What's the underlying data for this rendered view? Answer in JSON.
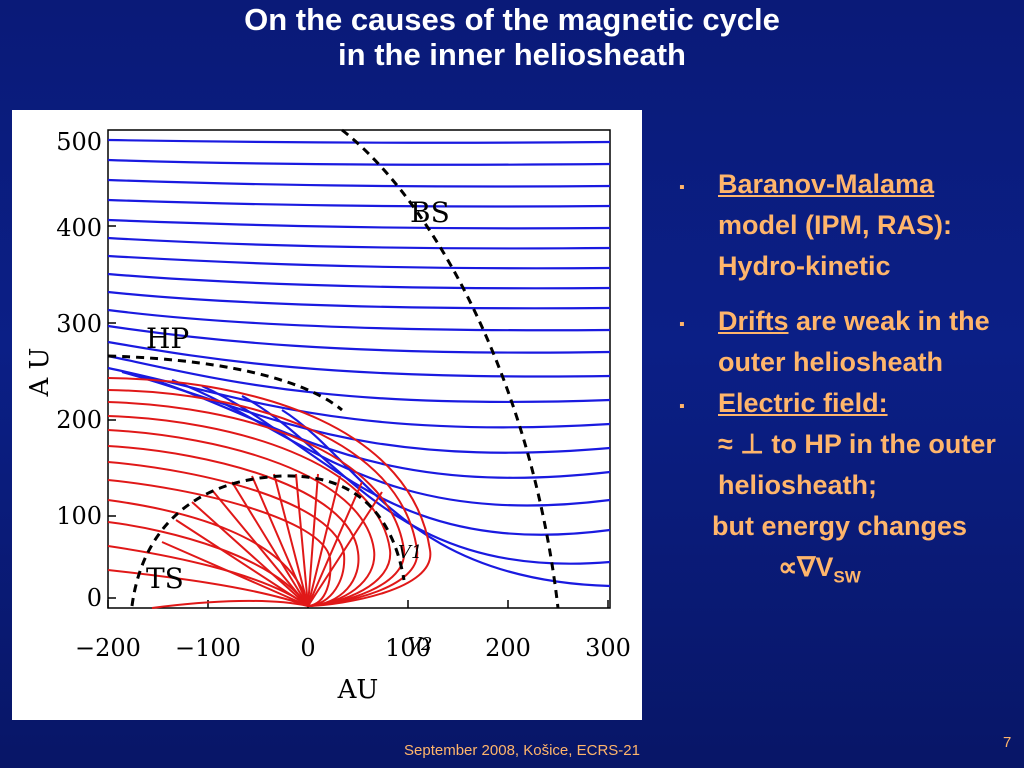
{
  "title": {
    "line1": "On the causes of the magnetic cycle",
    "line2": "in the inner heliosheath"
  },
  "figure": {
    "y_ticks": [
      "500",
      "400",
      "300",
      "200",
      "100",
      "0"
    ],
    "x_ticks": [
      "−200",
      "−100",
      "0",
      "100",
      "200",
      "300"
    ],
    "y_axis_label": "A U",
    "x_axis_label": "AU",
    "region_labels": {
      "bs": "BS",
      "hp": "HP",
      "ts": "TS",
      "v1": "V1",
      "v2": "V2"
    }
  },
  "bullets": [
    {
      "lead": "Baranov-Malama",
      "rest": " model (IPM, RAS): Hydro-kinetic"
    },
    {
      "lead": "Drifts",
      "rest": " are weak in the outer heliosheath"
    },
    {
      "lead": "Electric field:",
      "line2": "≈ ⊥ to HP in the outer heliosheath;",
      "line3": "but energy changes",
      "formula": "∝∇V",
      "formula_sub": "SW"
    }
  ],
  "footer": "September 2008, Košice, ECRS-21",
  "page_number": "7",
  "colors": {
    "background": "#0b1f86",
    "accent": "#ffb56b",
    "title": "#ffffff",
    "field_outer": "#1a1ae0",
    "field_inner": "#e01818"
  }
}
